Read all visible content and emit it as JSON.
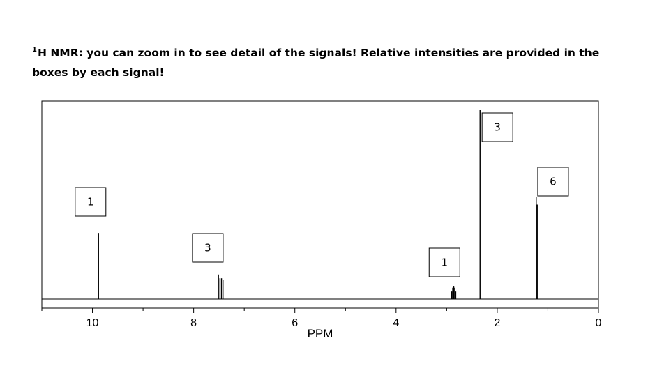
{
  "header": {
    "superscript": "1",
    "instruction": "H NMR: you can zoom in to see detail of the signals! Relative intensities are provided in the boxes by each signal!"
  },
  "chart_data": {
    "type": "line",
    "title": "",
    "xlabel": "PPM",
    "ylabel": "",
    "xlim": [
      11,
      0
    ],
    "ylim": [
      0,
      1
    ],
    "x_ticks": [
      "10",
      "8",
      "6",
      "4",
      "2",
      "0"
    ],
    "x_tick_values": [
      10,
      8,
      6,
      4,
      2,
      0
    ],
    "grid": false,
    "peaks": [
      {
        "ppm": 9.88,
        "height": 0.35
      },
      {
        "ppm": 7.51,
        "height": 0.13
      },
      {
        "ppm": 7.48,
        "height": 0.11
      },
      {
        "ppm": 7.45,
        "height": 0.11
      },
      {
        "ppm": 7.42,
        "height": 0.1
      },
      {
        "ppm": 2.9,
        "height": 0.04
      },
      {
        "ppm": 2.88,
        "height": 0.06
      },
      {
        "ppm": 2.86,
        "height": 0.07
      },
      {
        "ppm": 2.84,
        "height": 0.06
      },
      {
        "ppm": 2.82,
        "height": 0.04
      },
      {
        "ppm": 2.34,
        "height": 1.0
      },
      {
        "ppm": 1.23,
        "height": 0.54
      },
      {
        "ppm": 1.21,
        "height": 0.5
      }
    ],
    "intensity_labels": [
      {
        "text": "1",
        "ppm": 9.9
      },
      {
        "text": "3",
        "ppm": 7.5
      },
      {
        "text": "1",
        "ppm": 2.85
      },
      {
        "text": "3",
        "ppm": 2.3
      },
      {
        "text": "6",
        "ppm": 1.2
      }
    ]
  }
}
